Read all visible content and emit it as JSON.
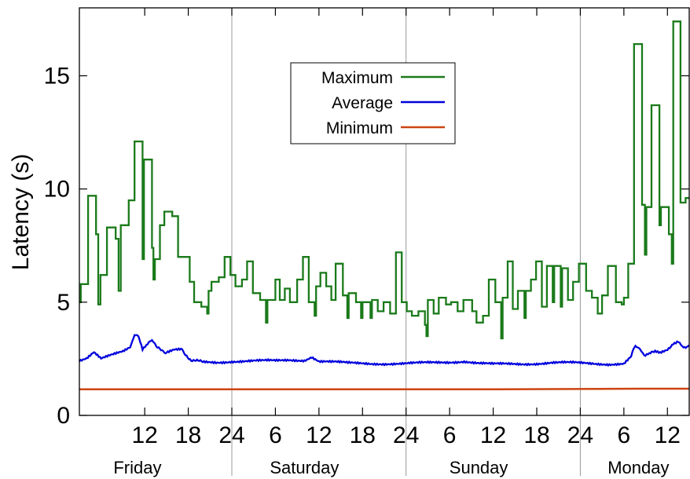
{
  "chart_data": {
    "type": "line",
    "title": "",
    "ylabel": "Latency (s)",
    "xlabel": "",
    "ylim": [
      0,
      18
    ],
    "xlim_hours": [
      3,
      87
    ],
    "yticks": [
      0,
      5,
      10,
      15
    ],
    "x_ticks": [
      {
        "hour": 12,
        "label": "12"
      },
      {
        "hour": 18,
        "label": "18"
      },
      {
        "hour": 24,
        "label": "24"
      },
      {
        "hour": 30,
        "label": "6"
      },
      {
        "hour": 36,
        "label": "12"
      },
      {
        "hour": 42,
        "label": "18"
      },
      {
        "hour": 48,
        "label": "24"
      },
      {
        "hour": 54,
        "label": "6"
      },
      {
        "hour": 60,
        "label": "12"
      },
      {
        "hour": 66,
        "label": "18"
      },
      {
        "hour": 72,
        "label": "24"
      },
      {
        "hour": 78,
        "label": "6"
      },
      {
        "hour": 84,
        "label": "12"
      }
    ],
    "day_separators_hours": [
      24,
      48,
      72
    ],
    "day_labels": [
      {
        "label": "Friday",
        "center_hour": 11
      },
      {
        "label": "Saturday",
        "center_hour": 34
      },
      {
        "label": "Sunday",
        "center_hour": 58
      },
      {
        "label": "Monday",
        "center_hour": 80
      }
    ],
    "legend": {
      "placement": "top-center, boxed",
      "entries": [
        "Maximum",
        "Average",
        "Minimum"
      ]
    },
    "grid": "vertical lines at day boundaries only",
    "series": [
      {
        "name": "Maximum",
        "color": "#1a7a1a",
        "style": "step",
        "points": [
          [
            3.0,
            5.0
          ],
          [
            3.2,
            5.8
          ],
          [
            4.0,
            5.8
          ],
          [
            4.2,
            9.7
          ],
          [
            5.1,
            9.7
          ],
          [
            5.3,
            8.0
          ],
          [
            5.6,
            4.9
          ],
          [
            5.9,
            6.2
          ],
          [
            6.6,
            6.2
          ],
          [
            6.8,
            8.3
          ],
          [
            7.8,
            8.3
          ],
          [
            8.0,
            7.8
          ],
          [
            8.4,
            5.5
          ],
          [
            8.7,
            8.4
          ],
          [
            9.6,
            8.4
          ],
          [
            9.8,
            9.5
          ],
          [
            10.3,
            9.5
          ],
          [
            10.6,
            12.1
          ],
          [
            11.5,
            12.1
          ],
          [
            11.7,
            6.9
          ],
          [
            11.9,
            11.3
          ],
          [
            12.8,
            11.3
          ],
          [
            13.0,
            7.4
          ],
          [
            13.2,
            6.0
          ],
          [
            13.4,
            6.9
          ],
          [
            13.9,
            6.9
          ],
          [
            14.1,
            8.4
          ],
          [
            14.5,
            8.4
          ],
          [
            14.7,
            9.0
          ],
          [
            15.6,
            9.0
          ],
          [
            15.8,
            8.8
          ],
          [
            16.4,
            8.8
          ],
          [
            16.6,
            7.0
          ],
          [
            17.9,
            7.0
          ],
          [
            18.2,
            5.9
          ],
          [
            18.6,
            5.9
          ],
          [
            18.8,
            5.0
          ],
          [
            19.6,
            5.0
          ],
          [
            19.8,
            4.8
          ],
          [
            20.4,
            4.8
          ],
          [
            20.6,
            4.5
          ],
          [
            20.8,
            5.5
          ],
          [
            21.2,
            5.9
          ],
          [
            22.0,
            5.9
          ],
          [
            22.2,
            6.1
          ],
          [
            22.8,
            6.1
          ],
          [
            23.0,
            7.0
          ],
          [
            23.6,
            7.0
          ],
          [
            23.8,
            6.2
          ],
          [
            24.3,
            6.2
          ],
          [
            24.5,
            5.7
          ],
          [
            25.2,
            5.7
          ],
          [
            25.4,
            6.0
          ],
          [
            25.9,
            6.0
          ],
          [
            26.1,
            6.8
          ],
          [
            26.7,
            6.8
          ],
          [
            26.9,
            5.4
          ],
          [
            27.7,
            5.4
          ],
          [
            27.9,
            5.1
          ],
          [
            28.5,
            5.1
          ],
          [
            28.7,
            4.1
          ],
          [
            28.9,
            5.1
          ],
          [
            29.8,
            5.1
          ],
          [
            30.0,
            6.0
          ],
          [
            30.4,
            6.0
          ],
          [
            30.6,
            5.1
          ],
          [
            31.1,
            5.1
          ],
          [
            31.3,
            5.6
          ],
          [
            31.8,
            5.6
          ],
          [
            32.0,
            5.0
          ],
          [
            32.8,
            5.0
          ],
          [
            33.0,
            6.0
          ],
          [
            33.6,
            6.0
          ],
          [
            33.8,
            7.0
          ],
          [
            34.4,
            7.0
          ],
          [
            34.6,
            5.0
          ],
          [
            35.2,
            5.0
          ],
          [
            35.4,
            4.4
          ],
          [
            35.6,
            5.7
          ],
          [
            36.0,
            5.7
          ],
          [
            36.2,
            6.3
          ],
          [
            36.8,
            6.3
          ],
          [
            37.0,
            5.7
          ],
          [
            37.5,
            5.7
          ],
          [
            37.7,
            5.1
          ],
          [
            38.1,
            5.1
          ],
          [
            38.3,
            6.7
          ],
          [
            39.1,
            6.7
          ],
          [
            39.3,
            5.3
          ],
          [
            39.7,
            5.3
          ],
          [
            39.9,
            4.3
          ],
          [
            40.1,
            5.4
          ],
          [
            40.9,
            5.4
          ],
          [
            41.1,
            5.0
          ],
          [
            41.6,
            5.0
          ],
          [
            41.8,
            4.3
          ],
          [
            42.0,
            5.0
          ],
          [
            42.9,
            5.0
          ],
          [
            43.1,
            4.3
          ],
          [
            43.3,
            5.1
          ],
          [
            43.9,
            5.1
          ],
          [
            44.1,
            4.6
          ],
          [
            44.7,
            4.6
          ],
          [
            44.9,
            5.0
          ],
          [
            45.6,
            5.0
          ],
          [
            45.8,
            4.5
          ],
          [
            46.4,
            4.5
          ],
          [
            46.6,
            7.2
          ],
          [
            47.2,
            7.2
          ],
          [
            47.4,
            5.0
          ],
          [
            47.9,
            5.0
          ],
          [
            48.1,
            4.6
          ],
          [
            48.6,
            4.6
          ],
          [
            48.8,
            4.4
          ],
          [
            49.5,
            4.4
          ],
          [
            49.7,
            4.6
          ],
          [
            50.4,
            4.6
          ],
          [
            50.6,
            4.0
          ],
          [
            50.8,
            3.5
          ],
          [
            51.0,
            5.1
          ],
          [
            51.6,
            5.1
          ],
          [
            51.8,
            4.5
          ],
          [
            52.3,
            4.5
          ],
          [
            52.5,
            5.2
          ],
          [
            53.3,
            5.2
          ],
          [
            53.5,
            4.9
          ],
          [
            54.0,
            4.9
          ],
          [
            54.2,
            5.0
          ],
          [
            54.9,
            5.0
          ],
          [
            55.1,
            4.6
          ],
          [
            55.7,
            4.6
          ],
          [
            55.9,
            5.1
          ],
          [
            56.9,
            5.1
          ],
          [
            57.1,
            4.6
          ],
          [
            57.5,
            4.6
          ],
          [
            57.7,
            4.1
          ],
          [
            58.4,
            4.1
          ],
          [
            58.6,
            4.4
          ],
          [
            59.2,
            4.4
          ],
          [
            59.4,
            6.0
          ],
          [
            60.1,
            6.0
          ],
          [
            60.3,
            5.0
          ],
          [
            60.9,
            5.0
          ],
          [
            61.1,
            3.4
          ],
          [
            61.3,
            5.2
          ],
          [
            61.8,
            5.2
          ],
          [
            62.0,
            6.8
          ],
          [
            62.5,
            6.8
          ],
          [
            62.7,
            4.7
          ],
          [
            63.2,
            4.7
          ],
          [
            63.4,
            5.5
          ],
          [
            64.1,
            5.5
          ],
          [
            64.3,
            4.3
          ],
          [
            64.5,
            5.5
          ],
          [
            65.0,
            5.5
          ],
          [
            65.2,
            6.0
          ],
          [
            65.7,
            6.0
          ],
          [
            65.9,
            6.8
          ],
          [
            66.5,
            6.8
          ],
          [
            66.7,
            4.8
          ],
          [
            67.2,
            4.8
          ],
          [
            67.4,
            6.6
          ],
          [
            68.0,
            6.6
          ],
          [
            68.2,
            5.0
          ],
          [
            68.4,
            6.6
          ],
          [
            69.1,
            6.6
          ],
          [
            69.3,
            4.8
          ],
          [
            69.5,
            6.5
          ],
          [
            70.1,
            6.5
          ],
          [
            70.3,
            5.1
          ],
          [
            70.8,
            5.1
          ],
          [
            71.0,
            5.9
          ],
          [
            71.6,
            5.9
          ],
          [
            71.8,
            6.7
          ],
          [
            72.6,
            6.7
          ],
          [
            72.8,
            5.5
          ],
          [
            73.4,
            5.5
          ],
          [
            73.6,
            5.2
          ],
          [
            74.2,
            5.2
          ],
          [
            74.4,
            4.5
          ],
          [
            74.8,
            4.5
          ],
          [
            75.0,
            5.3
          ],
          [
            75.6,
            5.3
          ],
          [
            75.8,
            6.6
          ],
          [
            76.7,
            6.6
          ],
          [
            76.9,
            5.0
          ],
          [
            77.5,
            5.0
          ],
          [
            77.7,
            4.9
          ],
          [
            78.0,
            5.2
          ],
          [
            78.4,
            5.2
          ],
          [
            78.6,
            6.7
          ],
          [
            79.2,
            6.7
          ],
          [
            79.4,
            16.4
          ],
          [
            80.3,
            16.4
          ],
          [
            80.5,
            9.3
          ],
          [
            80.9,
            7.1
          ],
          [
            81.1,
            9.2
          ],
          [
            81.6,
            9.2
          ],
          [
            81.8,
            13.7
          ],
          [
            82.7,
            13.7
          ],
          [
            82.9,
            8.4
          ],
          [
            83.1,
            9.2
          ],
          [
            84.0,
            9.2
          ],
          [
            84.2,
            8.0
          ],
          [
            84.6,
            6.7
          ],
          [
            84.8,
            17.4
          ],
          [
            85.6,
            17.4
          ],
          [
            85.8,
            9.4
          ],
          [
            86.3,
            9.4
          ],
          [
            86.5,
            9.6
          ],
          [
            87.0,
            9.6
          ]
        ]
      },
      {
        "name": "Average",
        "color": "#0000dd",
        "style": "noisy-line",
        "points": [
          [
            3.0,
            2.45
          ],
          [
            4.0,
            2.55
          ],
          [
            5.0,
            2.8
          ],
          [
            6.0,
            2.5
          ],
          [
            7.0,
            2.6
          ],
          [
            8.0,
            2.7
          ],
          [
            9.0,
            2.8
          ],
          [
            10.0,
            3.0
          ],
          [
            10.6,
            3.6
          ],
          [
            11.2,
            3.4
          ],
          [
            11.7,
            2.9
          ],
          [
            12.4,
            3.1
          ],
          [
            13.0,
            3.4
          ],
          [
            13.6,
            3.0
          ],
          [
            14.4,
            2.85
          ],
          [
            15.0,
            2.8
          ],
          [
            16.0,
            2.9
          ],
          [
            17.0,
            2.9
          ],
          [
            17.6,
            2.7
          ],
          [
            18.4,
            2.45
          ],
          [
            20.0,
            2.35
          ],
          [
            22.0,
            2.35
          ],
          [
            24.0,
            2.4
          ],
          [
            26.0,
            2.4
          ],
          [
            28.0,
            2.4
          ],
          [
            30.0,
            2.4
          ],
          [
            32.0,
            2.45
          ],
          [
            34.0,
            2.45
          ],
          [
            35.0,
            2.6
          ],
          [
            36.0,
            2.4
          ],
          [
            38.0,
            2.35
          ],
          [
            40.0,
            2.3
          ],
          [
            44.0,
            2.3
          ],
          [
            48.0,
            2.28
          ],
          [
            50.0,
            2.3
          ],
          [
            53.0,
            2.35
          ],
          [
            56.0,
            2.4
          ],
          [
            58.0,
            2.3
          ],
          [
            60.0,
            2.25
          ],
          [
            64.0,
            2.28
          ],
          [
            68.0,
            2.33
          ],
          [
            72.0,
            2.3
          ],
          [
            76.0,
            2.28
          ],
          [
            78.0,
            2.3
          ],
          [
            79.0,
            2.6
          ],
          [
            79.6,
            3.1
          ],
          [
            80.2,
            2.95
          ],
          [
            80.8,
            2.6
          ],
          [
            81.5,
            2.7
          ],
          [
            82.3,
            2.85
          ],
          [
            83.0,
            2.75
          ],
          [
            84.0,
            2.9
          ],
          [
            84.8,
            3.2
          ],
          [
            85.5,
            3.3
          ],
          [
            86.2,
            3.0
          ],
          [
            87.0,
            3.1
          ]
        ]
      },
      {
        "name": "Minimum",
        "color": "#cc4411",
        "style": "line",
        "points": [
          [
            3.0,
            1.15
          ],
          [
            20.0,
            1.15
          ],
          [
            40.0,
            1.15
          ],
          [
            60.0,
            1.15
          ],
          [
            80.0,
            1.18
          ],
          [
            87.0,
            1.18
          ]
        ]
      }
    ]
  }
}
